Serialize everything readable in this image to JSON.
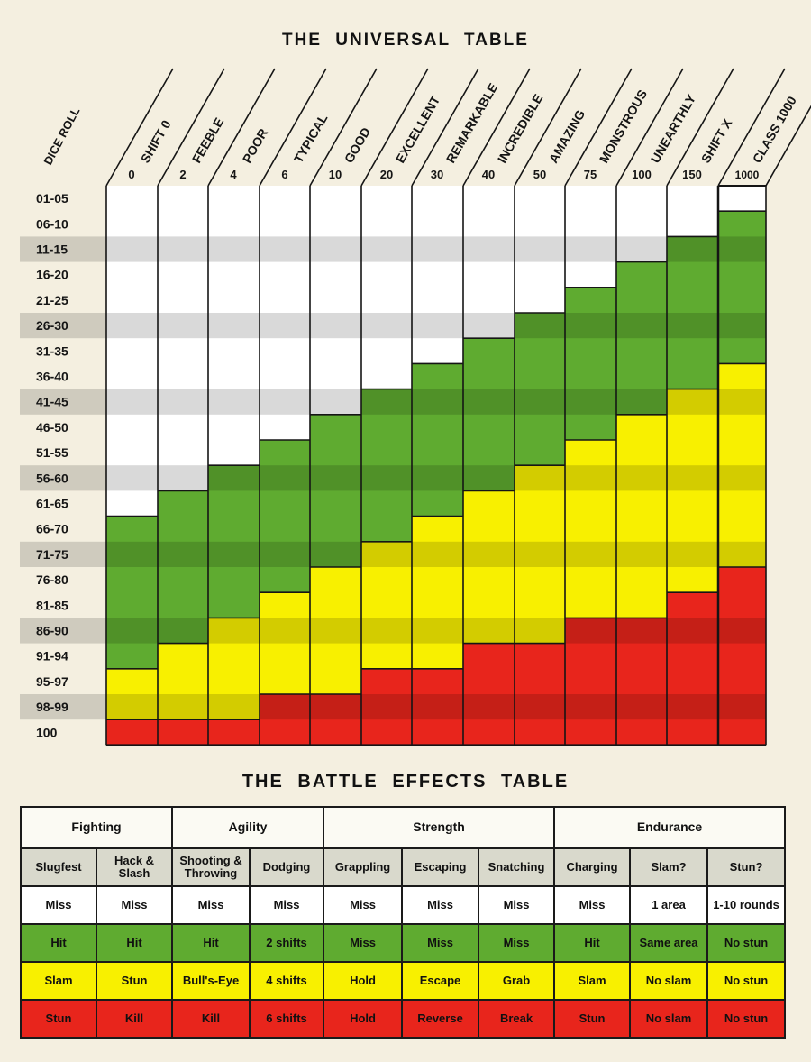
{
  "universal_title": "THE UNIVERSAL TABLE",
  "battle_title": "THE BATTLE EFFECTS TABLE",
  "colors": {
    "white": "#ffffff",
    "green": "#5fab30",
    "yellow": "#f8f000",
    "red": "#e8251c",
    "stripe": "#000000"
  },
  "chart_data": {
    "type": "table",
    "title": "THE UNIVERSAL TABLE",
    "row_header": "DICE ROLL",
    "dice_rolls": [
      "01-05",
      "06-10",
      "11-15",
      "16-20",
      "21-25",
      "26-30",
      "31-35",
      "36-40",
      "41-45",
      "46-50",
      "51-55",
      "56-60",
      "61-65",
      "66-70",
      "71-75",
      "76-80",
      "81-85",
      "86-90",
      "91-94",
      "95-97",
      "98-99",
      "100"
    ],
    "shaded_rows": [
      2,
      5,
      8,
      11,
      14,
      17,
      20
    ],
    "ranks": [
      {
        "name": "SHIFT 0",
        "value": "0",
        "green_from": "66-70",
        "yellow_from": "95-97",
        "red_from": "100"
      },
      {
        "name": "FEEBLE",
        "value": "2",
        "green_from": "61-65",
        "yellow_from": "91-94",
        "red_from": "100"
      },
      {
        "name": "POOR",
        "value": "4",
        "green_from": "56-60",
        "yellow_from": "86-90",
        "red_from": "100"
      },
      {
        "name": "TYPICAL",
        "value": "6",
        "green_from": "51-55",
        "yellow_from": "81-85",
        "red_from": "98-99"
      },
      {
        "name": "GOOD",
        "value": "10",
        "green_from": "46-50",
        "yellow_from": "76-80",
        "red_from": "98-99"
      },
      {
        "name": "EXCELLENT",
        "value": "20",
        "green_from": "41-45",
        "yellow_from": "71-75",
        "red_from": "95-97"
      },
      {
        "name": "REMARKABLE",
        "value": "30",
        "green_from": "36-40",
        "yellow_from": "66-70",
        "red_from": "95-97"
      },
      {
        "name": "INCREDIBLE",
        "value": "40",
        "green_from": "31-35",
        "yellow_from": "61-65",
        "red_from": "91-94"
      },
      {
        "name": "AMAZING",
        "value": "50",
        "green_from": "26-30",
        "yellow_from": "56-60",
        "red_from": "91-94"
      },
      {
        "name": "MONSTROUS",
        "value": "75",
        "green_from": "21-25",
        "yellow_from": "51-55",
        "red_from": "86-90"
      },
      {
        "name": "UNEARTHLY",
        "value": "100",
        "green_from": "16-20",
        "yellow_from": "46-50",
        "red_from": "86-90"
      },
      {
        "name": "SHIFT X",
        "value": "150",
        "green_from": "11-15",
        "yellow_from": "41-45",
        "red_from": "81-85"
      },
      {
        "name": "CLASS 1000",
        "value": "1000",
        "green_from": "06-10",
        "yellow_from": "36-40",
        "red_from": "76-80"
      }
    ]
  },
  "battle": {
    "groups": [
      {
        "label": "Fighting",
        "span": 2
      },
      {
        "label": "Agility",
        "span": 2
      },
      {
        "label": "Strength",
        "span": 3
      },
      {
        "label": "Endurance",
        "span": 3
      }
    ],
    "columns": [
      "Slugfest",
      "Hack & Slash",
      "Shooting & Throwing",
      "Dodging",
      "Grappling",
      "Escaping",
      "Snatching",
      "Charging",
      "Slam?",
      "Stun?"
    ],
    "rows": [
      {
        "color": "white",
        "cells": [
          "Miss",
          "Miss",
          "Miss",
          "Miss",
          "Miss",
          "Miss",
          "Miss",
          "Miss",
          "1 area",
          "1-10 rounds"
        ]
      },
      {
        "color": "green",
        "cells": [
          "Hit",
          "Hit",
          "Hit",
          "2 shifts",
          "Miss",
          "Miss",
          "Miss",
          "Hit",
          "Same area",
          "No stun"
        ]
      },
      {
        "color": "yellow",
        "cells": [
          "Slam",
          "Stun",
          "Bull's-Eye",
          "4 shifts",
          "Hold",
          "Escape",
          "Grab",
          "Slam",
          "No slam",
          "No stun"
        ]
      },
      {
        "color": "red",
        "cells": [
          "Stun",
          "Kill",
          "Kill",
          "6 shifts",
          "Hold",
          "Reverse",
          "Break",
          "Stun",
          "No slam",
          "No stun"
        ]
      }
    ]
  }
}
